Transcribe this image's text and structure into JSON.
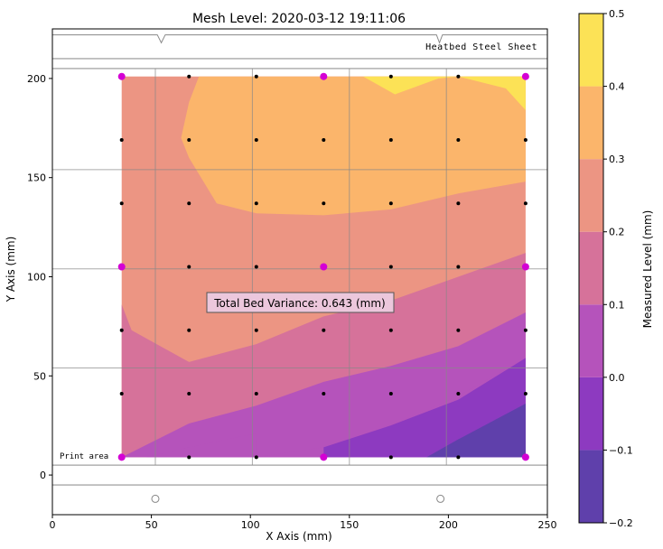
{
  "chart_data": {
    "type": "contour",
    "title": "Mesh Level: 2020-03-12 19:11:06",
    "xlabel": "X Axis (mm)",
    "ylabel": "Y Axis (mm)",
    "xlim": [
      0,
      250
    ],
    "ylim": [
      -20,
      225
    ],
    "xticks": [
      0,
      50,
      100,
      150,
      200,
      250
    ],
    "yticks": [
      0,
      50,
      100,
      150,
      200
    ],
    "sheet_label": "Heatbed Steel Sheet",
    "print_area_label": "Print area",
    "annotation": "Total Bed Variance: 0.643 (mm)",
    "colorbar": {
      "label": "Measured Level (mm)",
      "levels": [
        -0.2,
        -0.1,
        0.0,
        0.1,
        0.2,
        0.3,
        0.4,
        0.5
      ],
      "tick_labels": [
        "−0.2",
        "−0.1",
        "0.0",
        "0.1",
        "0.2",
        "0.3",
        "0.4",
        "0.5"
      ],
      "colors": [
        "#5f40ab",
        "#8d3ac0",
        "#b553bb",
        "#d6729a",
        "#ec9583",
        "#fbb56b",
        "#fce256"
      ]
    },
    "grid_x": [
      35,
      69,
      103,
      137,
      171,
      205,
      239
    ],
    "grid_y": [
      9,
      41,
      73,
      105,
      137,
      169,
      201
    ],
    "probe_points_highlight": [
      [
        35,
        9
      ],
      [
        137,
        9
      ],
      [
        239,
        9
      ],
      [
        35,
        105
      ],
      [
        137,
        105
      ],
      [
        239,
        105
      ],
      [
        35,
        201
      ],
      [
        137,
        201
      ],
      [
        239,
        201
      ]
    ],
    "contour_regions": [
      {
        "level": "0.1 to 0.2",
        "polygon": [
          [
            35,
            9
          ],
          [
            239,
            9
          ],
          [
            239,
            82
          ],
          [
            205,
            65
          ],
          [
            171,
            55
          ],
          [
            137,
            47
          ],
          [
            103,
            35
          ],
          [
            69,
            26
          ],
          [
            35,
            9
          ]
        ]
      },
      {
        "level": "0.2 to 0.3",
        "polygon": [
          [
            35,
            9
          ],
          [
            239,
            9
          ],
          [
            239,
            112
          ],
          [
            205,
            100
          ],
          [
            171,
            88
          ],
          [
            137,
            80
          ],
          [
            103,
            66
          ],
          [
            69,
            57
          ],
          [
            40,
            73
          ],
          [
            35,
            86
          ],
          [
            35,
            9
          ]
        ]
      },
      {
        "level": "0.3 to 0.4",
        "polygon": [
          [
            239,
            148
          ],
          [
            205,
            142
          ],
          [
            171,
            134
          ],
          [
            137,
            131
          ],
          [
            103,
            132
          ],
          [
            83,
            137
          ],
          [
            69,
            160
          ],
          [
            65,
            170
          ],
          [
            69,
            188
          ],
          [
            74,
            201
          ],
          [
            239,
            201
          ]
        ]
      },
      {
        "level": "0.4 to 0.5",
        "polygon": [
          [
            157,
            201
          ],
          [
            173,
            192
          ],
          [
            195,
            200
          ],
          [
            205,
            201
          ],
          [
            239,
            201
          ],
          [
            239,
            184
          ],
          [
            229,
            195
          ],
          [
            205,
            201
          ],
          [
            157,
            201
          ]
        ]
      },
      {
        "level": "0.0 to 0.1",
        "polygon": [
          [
            35,
            9
          ],
          [
            239,
            9
          ],
          [
            239,
            59
          ],
          [
            205,
            40
          ],
          [
            171,
            25
          ],
          [
            137,
            14
          ],
          [
            103,
            9
          ],
          [
            35,
            9
          ]
        ]
      },
      {
        "level": "0.0 to 0.1",
        "polygon": [
          [
            47,
            9
          ],
          [
            103,
            9
          ],
          [
            103,
            21
          ],
          [
            69,
            14
          ],
          [
            47,
            9
          ]
        ]
      },
      {
        "level": "-0.1 to 0.0",
        "polygon": [
          [
            137,
            9
          ],
          [
            239,
            9
          ],
          [
            239,
            59
          ],
          [
            205,
            38
          ],
          [
            171,
            25
          ],
          [
            137,
            14
          ],
          [
            137,
            9
          ]
        ]
      },
      {
        "level": "-0.2 to -0.1",
        "polygon": [
          [
            189,
            9
          ],
          [
            239,
            9
          ],
          [
            239,
            36
          ],
          [
            205,
            18
          ],
          [
            189,
            9
          ]
        ]
      }
    ]
  }
}
